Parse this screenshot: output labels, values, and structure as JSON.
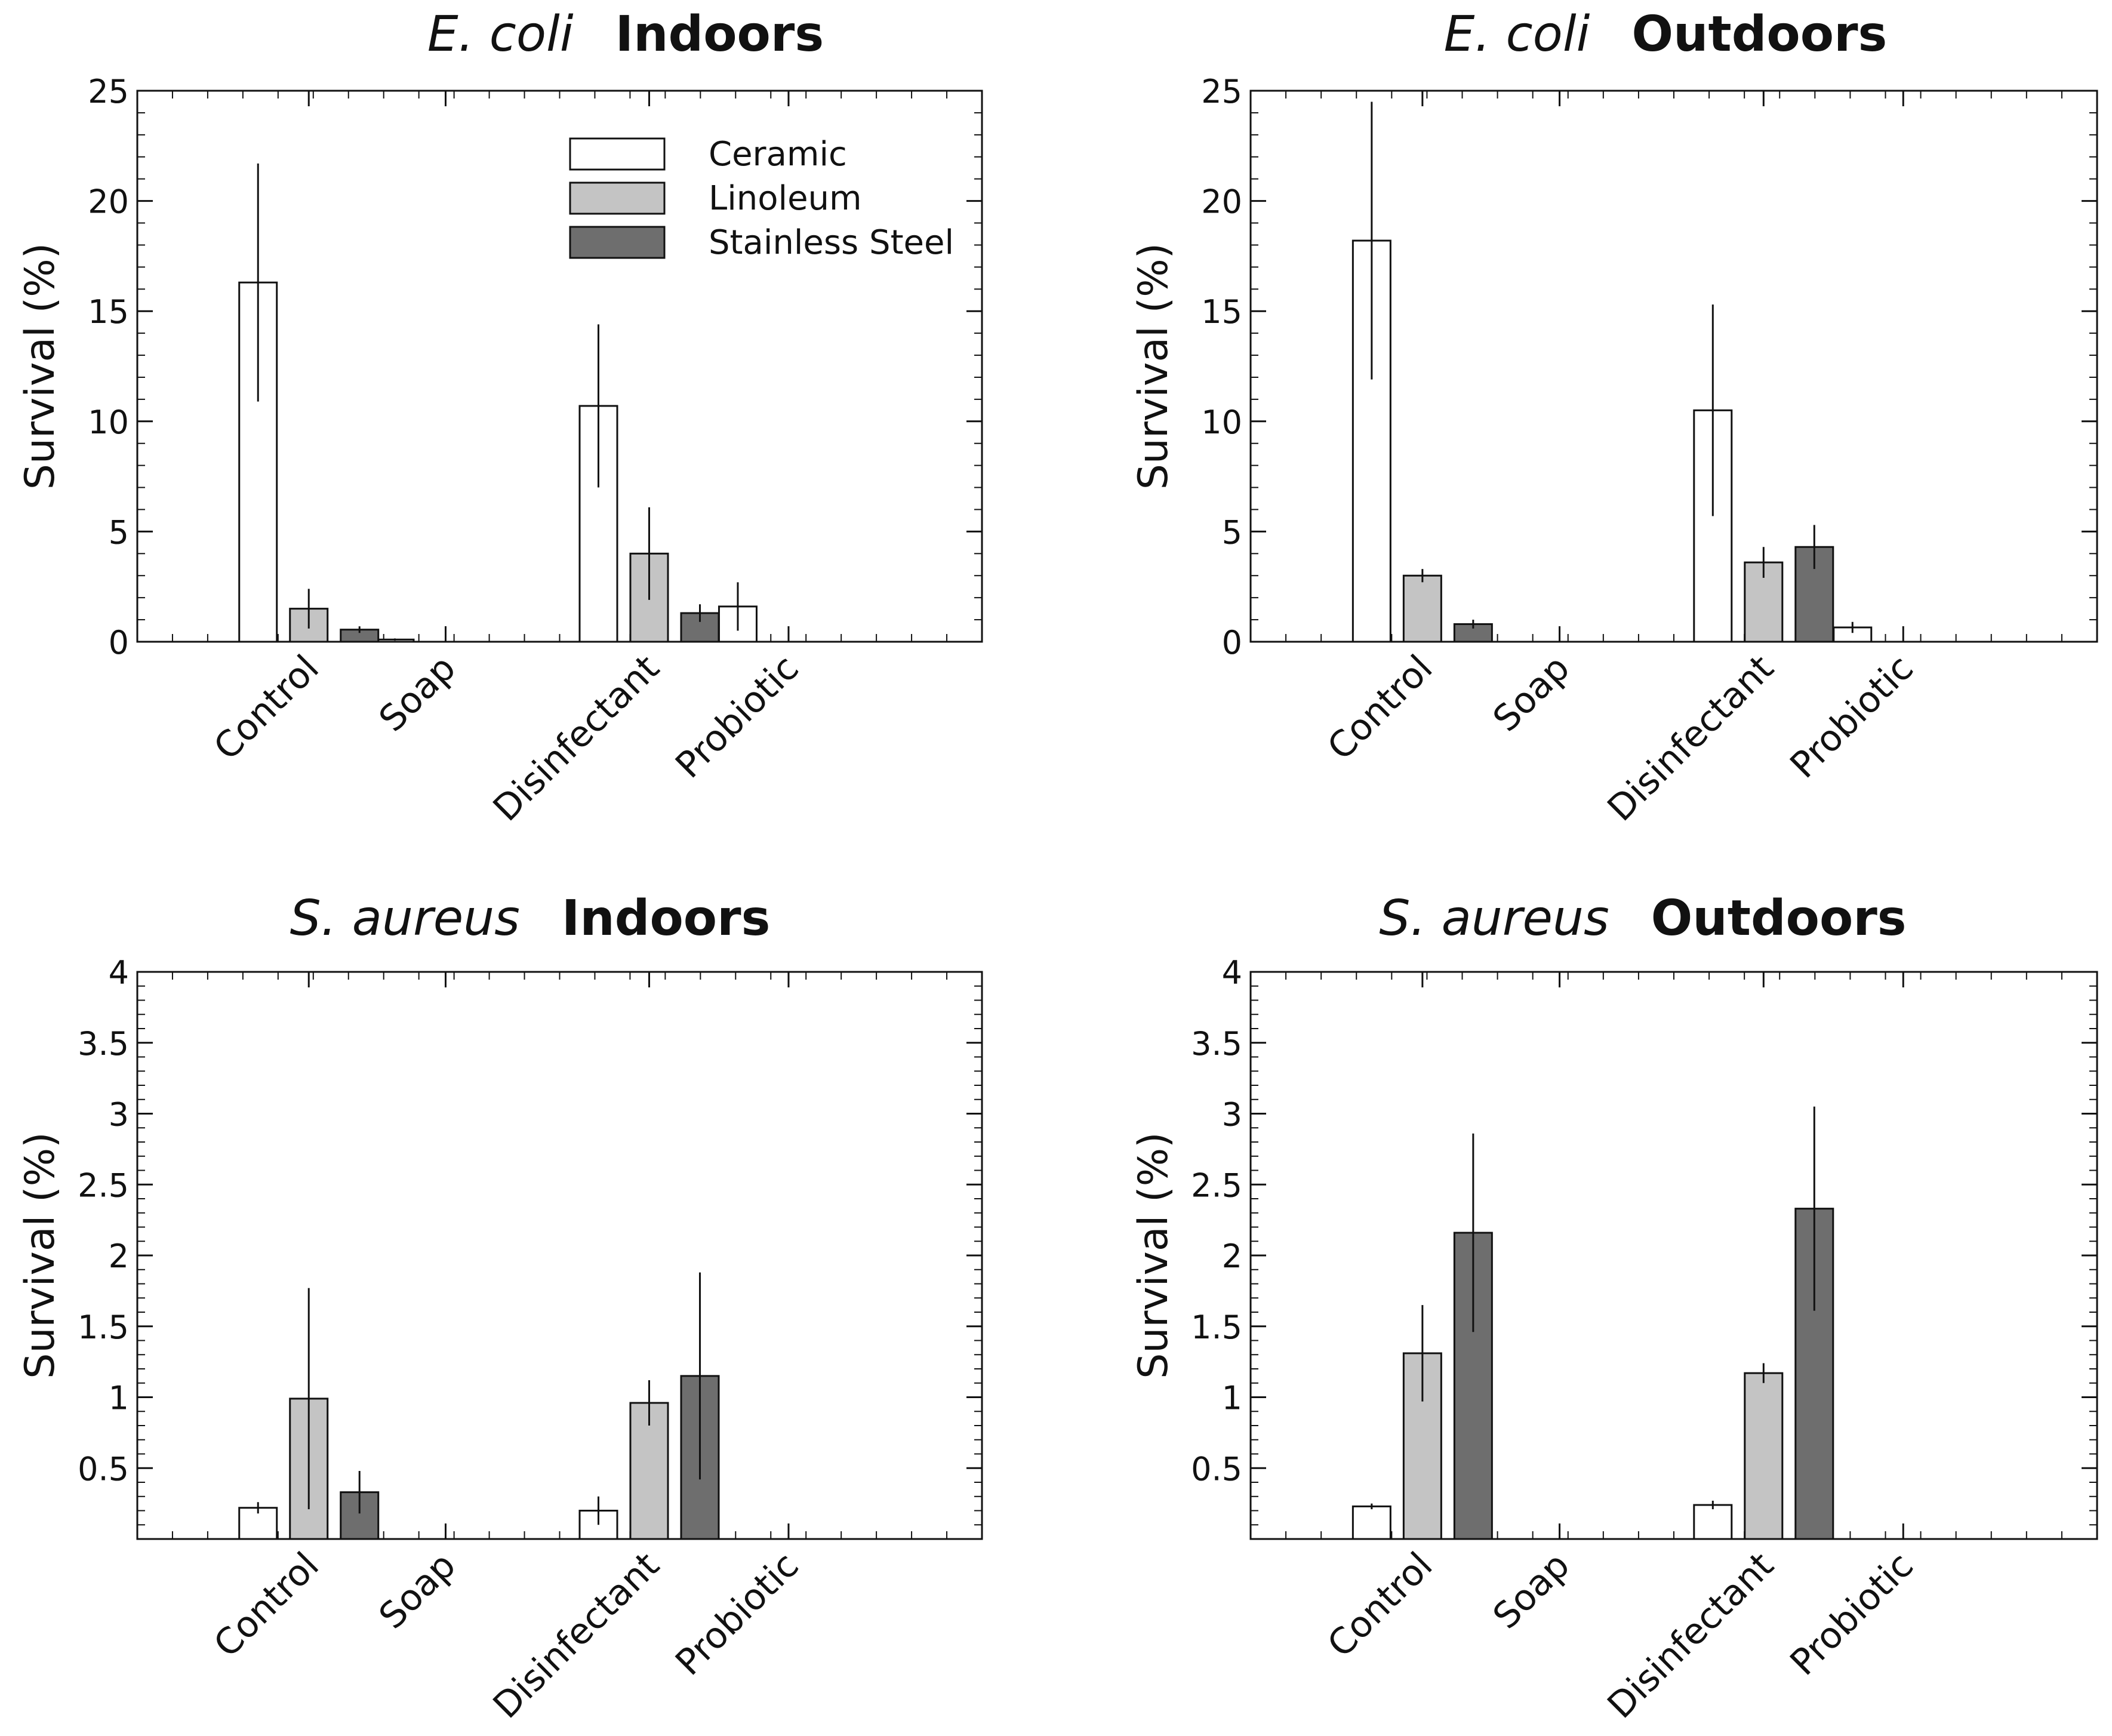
{
  "colors": {
    "Ceramic": "#ffffff",
    "Linoleum": "#c4c4c4",
    "Stainless Steel": "#6e6e6e",
    "stroke": "#111111"
  },
  "legend": {
    "items": [
      "Ceramic",
      "Linoleum",
      "Stainless Steel"
    ],
    "placement": "top-right of first panel"
  },
  "chart_data": [
    {
      "type": "bar",
      "title_species": "E.  coli",
      "title_env": "Indoors",
      "ylabel": "Survival  (%)",
      "categories": [
        "Control",
        "Soap",
        "Disinfectant",
        "Probiotic"
      ],
      "ylim": [
        0,
        25
      ],
      "yticks": [
        0,
        5,
        10,
        15,
        20,
        25
      ],
      "ytick_labels": [
        "0",
        "5",
        "10",
        "15",
        "20",
        "25"
      ],
      "series": [
        {
          "name": "Ceramic",
          "values": [
            16.3,
            0.1,
            10.7,
            1.6
          ],
          "errors": [
            5.4,
            0.05,
            3.7,
            1.1
          ]
        },
        {
          "name": "Linoleum",
          "values": [
            1.5,
            0.0,
            4.0,
            0.0
          ],
          "errors": [
            0.9,
            0.0,
            2.1,
            0.0
          ]
        },
        {
          "name": "Stainless Steel",
          "values": [
            0.55,
            0.0,
            1.3,
            0.0
          ],
          "errors": [
            0.15,
            0.0,
            0.4,
            0.0
          ]
        }
      ]
    },
    {
      "type": "bar",
      "title_species": "E.  coli",
      "title_env": "Outdoors",
      "ylabel": "Survival  (%)",
      "categories": [
        "Control",
        "Soap",
        "Disinfectant",
        "Probiotic"
      ],
      "ylim": [
        0,
        25
      ],
      "yticks": [
        0,
        5,
        10,
        15,
        20,
        25
      ],
      "ytick_labels": [
        "0",
        "5",
        "10",
        "15",
        "20",
        "25"
      ],
      "series": [
        {
          "name": "Ceramic",
          "values": [
            18.2,
            0.0,
            10.5,
            0.65
          ],
          "errors": [
            6.3,
            0.0,
            4.8,
            0.25
          ]
        },
        {
          "name": "Linoleum",
          "values": [
            3.0,
            0.0,
            3.6,
            0.0
          ],
          "errors": [
            0.3,
            0.0,
            0.7,
            0.0
          ]
        },
        {
          "name": "Stainless Steel",
          "values": [
            0.8,
            0.0,
            4.3,
            0.0
          ],
          "errors": [
            0.2,
            0.0,
            1.0,
            0.0
          ]
        }
      ]
    },
    {
      "type": "bar",
      "title_species": "S.  aureus",
      "title_env": "Indoors",
      "ylabel": "Survival  (%)",
      "categories": [
        "Control",
        "Soap",
        "Disinfectant",
        "Probiotic"
      ],
      "ylim": [
        0,
        4
      ],
      "yticks": [
        0.5,
        1,
        1.5,
        2,
        2.5,
        3,
        3.5,
        4
      ],
      "ytick_labels": [
        "0.5",
        "1",
        "1.5",
        "2",
        "2.5",
        "3",
        "3.5",
        "4"
      ],
      "series": [
        {
          "name": "Ceramic",
          "values": [
            0.22,
            0.0,
            0.2,
            0.0
          ],
          "errors": [
            0.04,
            0.0,
            0.1,
            0.0
          ]
        },
        {
          "name": "Linoleum",
          "values": [
            0.99,
            0.0,
            0.96,
            0.0
          ],
          "errors": [
            0.78,
            0.0,
            0.16,
            0.0
          ]
        },
        {
          "name": "Stainless Steel",
          "values": [
            0.33,
            0.0,
            1.15,
            0.0
          ],
          "errors": [
            0.15,
            0.0,
            0.73,
            0.0
          ]
        }
      ]
    },
    {
      "type": "bar",
      "title_species": "S.  aureus",
      "title_env": "Outdoors",
      "ylabel": "Survival  (%)",
      "categories": [
        "Control",
        "Soap",
        "Disinfectant",
        "Probiotic"
      ],
      "ylim": [
        0,
        4
      ],
      "yticks": [
        0.5,
        1,
        1.5,
        2,
        2.5,
        3,
        3.5,
        4
      ],
      "ytick_labels": [
        "0.5",
        "1",
        "1.5",
        "2",
        "2.5",
        "3",
        "3.5",
        "4"
      ],
      "series": [
        {
          "name": "Ceramic",
          "values": [
            0.23,
            0.0,
            0.24,
            0.0
          ],
          "errors": [
            0.02,
            0.0,
            0.03,
            0.0
          ]
        },
        {
          "name": "Linoleum",
          "values": [
            1.31,
            0.0,
            1.17,
            0.0
          ],
          "errors": [
            0.34,
            0.0,
            0.07,
            0.0
          ]
        },
        {
          "name": "Stainless Steel",
          "values": [
            2.16,
            0.0,
            2.33,
            0.0
          ],
          "errors": [
            0.7,
            0.0,
            0.72,
            0.0
          ]
        }
      ]
    }
  ]
}
